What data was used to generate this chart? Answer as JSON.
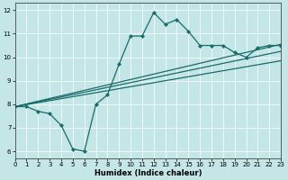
{
  "title": "",
  "xlabel": "Humidex (Indice chaleur)",
  "xlim": [
    0,
    23
  ],
  "ylim": [
    5.7,
    12.3
  ],
  "xticks": [
    0,
    1,
    2,
    3,
    4,
    5,
    6,
    7,
    8,
    9,
    10,
    11,
    12,
    13,
    14,
    15,
    16,
    17,
    18,
    19,
    20,
    21,
    22,
    23
  ],
  "yticks": [
    6,
    7,
    8,
    9,
    10,
    11,
    12
  ],
  "bg_color": "#c4e6e6",
  "line_color": "#1a6b6b",
  "marker_style": "D",
  "markersize": 2.2,
  "linewidth": 0.9,
  "main_line": {
    "x": [
      0,
      1,
      2,
      3,
      4,
      5,
      6,
      7,
      8,
      9,
      10,
      11,
      12,
      13,
      14,
      15,
      16,
      17,
      18,
      19,
      20,
      21,
      22,
      23
    ],
    "y": [
      7.9,
      7.9,
      7.7,
      7.6,
      7.1,
      6.1,
      6.0,
      8.0,
      8.4,
      9.7,
      10.9,
      10.9,
      11.9,
      11.4,
      11.6,
      11.1,
      10.5,
      10.5,
      10.5,
      10.2,
      10.0,
      10.4,
      10.5,
      10.5
    ]
  },
  "straight_lines": [
    {
      "x": [
        0,
        23
      ],
      "y": [
        7.9,
        10.55
      ]
    },
    {
      "x": [
        0,
        23
      ],
      "y": [
        7.9,
        10.25
      ]
    },
    {
      "x": [
        0,
        23
      ],
      "y": [
        7.9,
        9.85
      ]
    }
  ],
  "grid_color": "#ffffff",
  "grid_linewidth": 0.5,
  "tick_fontsize": 5.0,
  "xlabel_fontsize": 6.0
}
